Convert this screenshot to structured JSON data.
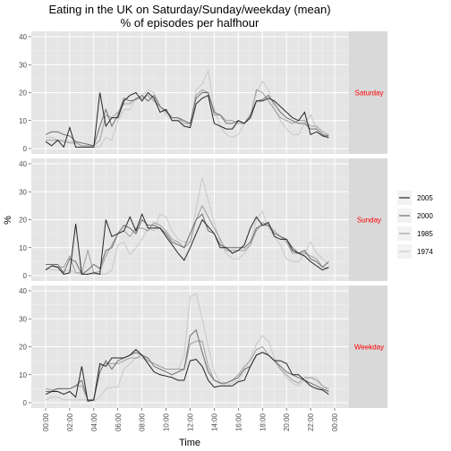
{
  "chart_data": {
    "type": "line",
    "title_line1": "Eating in the UK on Saturday/Sunday/weekday (mean)",
    "title_line2": "% of episodes per halfhour",
    "xlabel": "Time",
    "ylabel": "%",
    "ylim": [
      0,
      40
    ],
    "y_ticks": [
      "0",
      "10",
      "20",
      "30",
      "40"
    ],
    "x_ticks": [
      "00:00",
      "02:00",
      "04:00",
      "06:00",
      "08:00",
      "10:00",
      "12:00",
      "14:00",
      "16:00",
      "18:00",
      "20:00",
      "22:00",
      "00:00"
    ],
    "x": [
      "00:00",
      "00:30",
      "01:00",
      "01:30",
      "02:00",
      "02:30",
      "03:00",
      "03:30",
      "04:00",
      "04:30",
      "05:00",
      "05:30",
      "06:00",
      "06:30",
      "07:00",
      "07:30",
      "08:00",
      "08:30",
      "09:00",
      "09:30",
      "10:00",
      "10:30",
      "11:00",
      "11:30",
      "12:00",
      "12:30",
      "13:00",
      "13:30",
      "14:00",
      "14:30",
      "15:00",
      "15:30",
      "16:00",
      "16:30",
      "17:00",
      "17:30",
      "18:00",
      "18:30",
      "19:00",
      "19:30",
      "20:00",
      "20:30",
      "21:00",
      "21:30",
      "22:00",
      "22:30",
      "23:00",
      "23:30"
    ],
    "background": "#e5e5e5",
    "strip_fill": "#d9d9d9",
    "strip_text_color": "#ff0000",
    "grid": true,
    "legend_position": "right",
    "series_colors": {
      "2005": "#262626",
      "2000": "#6e6e6e",
      "1985": "#9e9e9e",
      "1974": "#c8c8c8"
    },
    "panels": [
      {
        "label": "Saturday",
        "series": [
          {
            "name": "2005",
            "values": [
              2.5,
              1,
              3,
              0.5,
              7.5,
              0.5,
              0.5,
              0.5,
              0.5,
              20,
              8,
              11,
              11,
              17,
              19,
              20,
              17,
              20,
              18,
              13,
              14,
              10,
              10,
              8,
              7.5,
              16,
              18,
              19,
              9,
              8,
              7,
              7,
              10,
              9,
              11,
              17,
              17,
              18,
              17,
              15,
              13,
              11,
              10,
              13,
              5,
              6,
              4.5,
              4
            ]
          },
          {
            "name": "2000",
            "values": [
              5,
              6,
              6,
              5,
              4.5,
              2.5,
              2,
              1.5,
              1,
              8,
              14,
              8,
              12,
              18,
              17,
              17.5,
              19,
              17,
              19,
              15,
              13.5,
              11,
              11,
              10,
              9,
              18,
              20,
              20,
              13,
              12,
              9,
              9,
              10,
              9,
              12,
              17,
              17.5,
              19,
              16,
              13,
              11,
              10,
              9,
              9,
              7,
              7,
              5,
              4.5
            ]
          },
          {
            "name": "1985",
            "values": [
              3,
              3,
              3,
              2.5,
              2,
              2,
              1,
              1,
              1,
              3,
              12,
              11,
              13,
              16,
              16,
              18,
              18,
              19,
              17,
              15,
              13,
              11,
              11,
              9,
              9,
              19,
              21,
              20,
              12,
              12,
              10,
              10,
              9,
              9,
              11,
              21,
              20,
              17,
              14,
              11,
              10,
              9,
              10,
              10,
              8,
              8,
              6,
              5
            ]
          },
          {
            "name": "1974",
            "values": [
              4,
              4,
              3,
              3,
              2.5,
              2.5,
              1,
              1,
              0.5,
              0.5,
              4,
              3,
              10,
              14,
              14,
              18,
              19,
              21,
              20,
              15,
              12,
              10,
              10,
              10,
              8,
              21,
              23,
              28,
              14,
              8,
              5,
              4,
              5,
              9,
              12,
              20,
              24,
              21,
              14,
              10,
              7,
              5,
              5,
              9,
              12,
              7,
              5,
              3.5
            ]
          }
        ]
      },
      {
        "label": "Sunday",
        "series": [
          {
            "name": "2005",
            "values": [
              2,
              3.5,
              3,
              0.5,
              1,
              18.5,
              0.5,
              0.5,
              1,
              0.5,
              20,
              14,
              15,
              16,
              21,
              16,
              22,
              17,
              17,
              17,
              14,
              11,
              8,
              5.5,
              10,
              15,
              20,
              17.5,
              15,
              10,
              10,
              8,
              9,
              11,
              17,
              21,
              18,
              19,
              14,
              13,
              13,
              9,
              8,
              7,
              5,
              3.5,
              2,
              3
            ]
          },
          {
            "name": "2000",
            "values": [
              4,
              4,
              4,
              1,
              6,
              5,
              0.5,
              2,
              4,
              2.5,
              9,
              10,
              15,
              18,
              17,
              15,
              20,
              18,
              18,
              17,
              15,
              12,
              11,
              10,
              15,
              20,
              22,
              16,
              15,
              11,
              10,
              10,
              10,
              10,
              12,
              17,
              18,
              18,
              15,
              14,
              13,
              10,
              8,
              9,
              6,
              5,
              3,
              5
            ]
          },
          {
            "name": "1985",
            "values": [
              4,
              4,
              3,
              3,
              7,
              1,
              1,
              9,
              1,
              1.5,
              7,
              11,
              15,
              16,
              14,
              17,
              17,
              16,
              19,
              18,
              16,
              13,
              12,
              10,
              12,
              20,
              25,
              21,
              17,
              13,
              9,
              9,
              9,
              9,
              11,
              16,
              19,
              18,
              16,
              14,
              12,
              8,
              8,
              8,
              7,
              6,
              3,
              2.5
            ]
          },
          {
            "name": "1974",
            "values": [
              3,
              2,
              2,
              1.5,
              2,
              1,
              0.5,
              0.5,
              0.5,
              0.5,
              0.5,
              2,
              11,
              12,
              7.5,
              10,
              13,
              17,
              16,
              22,
              21,
              16,
              13,
              12,
              12,
              24,
              35,
              27,
              19,
              12,
              8,
              6,
              6,
              8,
              11,
              20,
              23,
              17,
              14,
              11,
              6,
              5,
              5,
              8,
              12,
              8,
              6,
              4
            ]
          }
        ]
      },
      {
        "label": "Weekday",
        "series": [
          {
            "name": "2005",
            "values": [
              3,
              4,
              4,
              3,
              4,
              2,
              13,
              0.5,
              1,
              14,
              13,
              16,
              16,
              16,
              17,
              19,
              17,
              14,
              11,
              10,
              9.5,
              9,
              8,
              8,
              15,
              15.5,
              13,
              8,
              5.5,
              6,
              6,
              6,
              7.5,
              8,
              13,
              17,
              18,
              17,
              15,
              15,
              14,
              10,
              10,
              8,
              6,
              5,
              4.5,
              3
            ]
          },
          {
            "name": "2000",
            "values": [
              4,
              4,
              5,
              5,
              5,
              6,
              8,
              1,
              1,
              11,
              15,
              12,
              15,
              16,
              17,
              18,
              17,
              16,
              13,
              12,
              11,
              10,
              11,
              12,
              24,
              26,
              18,
              11,
              8,
              7,
              7,
              8,
              9,
              12,
              13,
              17,
              18,
              17,
              15,
              13,
              11,
              10,
              9,
              8,
              7,
              6,
              5,
              4
            ]
          },
          {
            "name": "1985",
            "values": [
              5,
              4.5,
              5,
              5,
              5,
              6,
              6,
              1,
              1,
              13,
              14,
              14,
              14,
              15,
              16,
              16,
              17,
              15,
              14,
              13,
              12,
              12,
              12,
              12,
              21,
              22,
              22,
              13,
              8,
              7,
              7,
              8,
              10,
              13,
              15,
              19,
              20,
              17,
              15,
              12,
              10,
              8,
              7,
              9,
              9,
              8,
              6,
              5
            ]
          },
          {
            "name": "1974",
            "values": [
              1,
              2,
              2,
              1,
              1,
              1,
              1,
              1,
              0.5,
              2,
              5,
              5.5,
              5.5,
              12,
              14,
              16,
              16,
              15,
              14,
              13,
              12,
              12,
              12,
              17,
              38,
              39,
              30,
              20,
              11,
              7,
              6,
              7,
              8,
              11,
              16,
              21,
              24,
              22,
              16,
              12,
              9,
              7,
              6,
              8,
              9,
              9,
              6,
              4
            ]
          }
        ]
      }
    ],
    "legend": [
      "2005",
      "2000",
      "1985",
      "1974"
    ]
  }
}
